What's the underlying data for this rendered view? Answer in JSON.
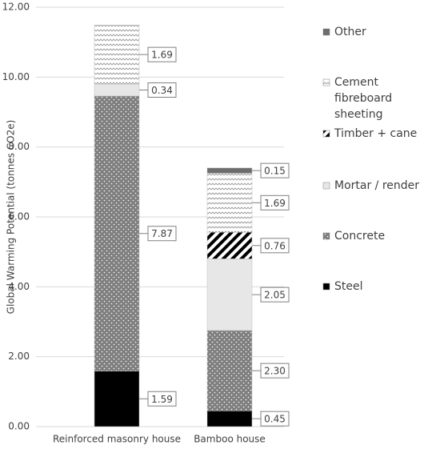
{
  "chart_data": {
    "type": "stacked_bar",
    "y_label": "Global Warming Potential (tonnes CO2e)",
    "categories": [
      "Reinforced masonry house",
      "Bamboo house"
    ],
    "series": [
      {
        "name": "Steel",
        "color": "#000000",
        "pattern": "solid",
        "values": [
          1.59,
          0.45
        ],
        "value_labels": [
          "1.59",
          "0.45"
        ]
      },
      {
        "name": "Concrete",
        "color": "#7f7f7f",
        "pattern": "dots",
        "values": [
          7.87,
          2.3
        ],
        "value_labels": [
          "7.87",
          "2.30"
        ]
      },
      {
        "name": "Mortar / render",
        "color": "#e7e7e7",
        "pattern": "solid",
        "values": [
          0.34,
          2.05
        ],
        "value_labels": [
          "0.34",
          "2.05"
        ]
      },
      {
        "name": "Timber + cane",
        "color": "#000000",
        "pattern": "stripes",
        "values": [
          null,
          0.76
        ],
        "value_labels": [
          null,
          "0.76"
        ]
      },
      {
        "name": "Cement fibreboard sheeting",
        "color": "#bfbfbf",
        "pattern": "zigzag",
        "values": [
          1.69,
          1.69
        ],
        "value_labels": [
          "1.69",
          "1.69"
        ]
      },
      {
        "name": "Other",
        "color": "#6d6d6d",
        "pattern": "solid",
        "values": [
          null,
          0.15
        ],
        "value_labels": [
          null,
          "0.15"
        ]
      }
    ],
    "ylim": [
      0,
      12
    ],
    "yticks": [
      {
        "value": 0,
        "label": "0.00"
      },
      {
        "value": 2,
        "label": "2.00"
      },
      {
        "value": 4,
        "label": "4.00"
      },
      {
        "value": 6,
        "label": "6.00"
      },
      {
        "value": 8,
        "label": "8.00"
      },
      {
        "value": 10,
        "label": "10.00"
      },
      {
        "value": 12,
        "label": "12.00"
      }
    ],
    "grid": true
  }
}
